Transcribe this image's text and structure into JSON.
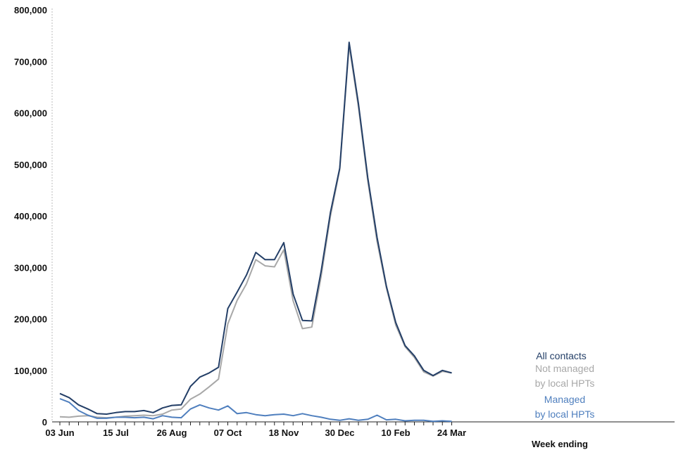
{
  "chart_data": {
    "type": "line",
    "xlabel": "Week ending",
    "ylabel": "",
    "ylim": [
      0,
      800000
    ],
    "yticks": [
      0,
      100000,
      200000,
      300000,
      400000,
      500000,
      600000,
      700000,
      800000
    ],
    "ytick_labels": [
      "0",
      "100,000",
      "200,000",
      "300,000",
      "400,000",
      "500,000",
      "600,000",
      "700,000",
      "800,000"
    ],
    "x_tick_labels": [
      "03 Jun",
      "15 Jul",
      "26 Aug",
      "07 Oct",
      "18 Nov",
      "30 Dec",
      "10 Feb",
      "24 Mar"
    ],
    "x_tick_positions": [
      0,
      6,
      12,
      18,
      24,
      30,
      36,
      42
    ],
    "x_count": 43,
    "x_ticks_every_week": true,
    "legend_placement": "inline-right",
    "grid": false,
    "series": [
      {
        "name": "All contacts",
        "label_lines": [
          "All contacts"
        ],
        "color": "#243f67",
        "values": [
          55000,
          47000,
          33000,
          25000,
          16000,
          15000,
          18000,
          20000,
          20000,
          22000,
          18000,
          27000,
          32000,
          33000,
          69000,
          87000,
          95000,
          106000,
          220000,
          252000,
          285000,
          329000,
          315000,
          315000,
          348000,
          248000,
          197000,
          196000,
          292000,
          407000,
          493000,
          737000,
          618000,
          474000,
          358000,
          263000,
          193000,
          148000,
          128000,
          100000,
          90000,
          100000,
          95000
        ]
      },
      {
        "name": "Not managed by local HPTs",
        "label_lines": [
          "Not managed",
          "by local HPTs"
        ],
        "color": "#a8a8a8",
        "values": [
          10000,
          9000,
          11000,
          12000,
          9000,
          8000,
          9000,
          11000,
          12000,
          13000,
          12000,
          15000,
          23000,
          25000,
          44000,
          54000,
          68000,
          83000,
          190000,
          236000,
          268000,
          315000,
          303000,
          301000,
          334000,
          235000,
          181000,
          184000,
          282000,
          400000,
          490000,
          731000,
          612000,
          468000,
          350000,
          260000,
          188000,
          146000,
          125000,
          97000,
          89000,
          98000,
          95000
        ]
      },
      {
        "name": "Managed by local HPTs",
        "label_lines": [
          "Managed",
          "by local HPTs"
        ],
        "color": "#4f7fbe",
        "values": [
          45000,
          38000,
          22000,
          13000,
          7000,
          7000,
          9000,
          9000,
          8000,
          9000,
          6000,
          12000,
          9000,
          8000,
          25000,
          33000,
          27000,
          23000,
          31000,
          16000,
          18000,
          14000,
          12000,
          14000,
          15000,
          12000,
          16000,
          12000,
          9000,
          5000,
          3000,
          6000,
          3000,
          5000,
          13000,
          4000,
          5000,
          2000,
          3000,
          3000,
          1000,
          2000,
          1000
        ]
      }
    ]
  }
}
